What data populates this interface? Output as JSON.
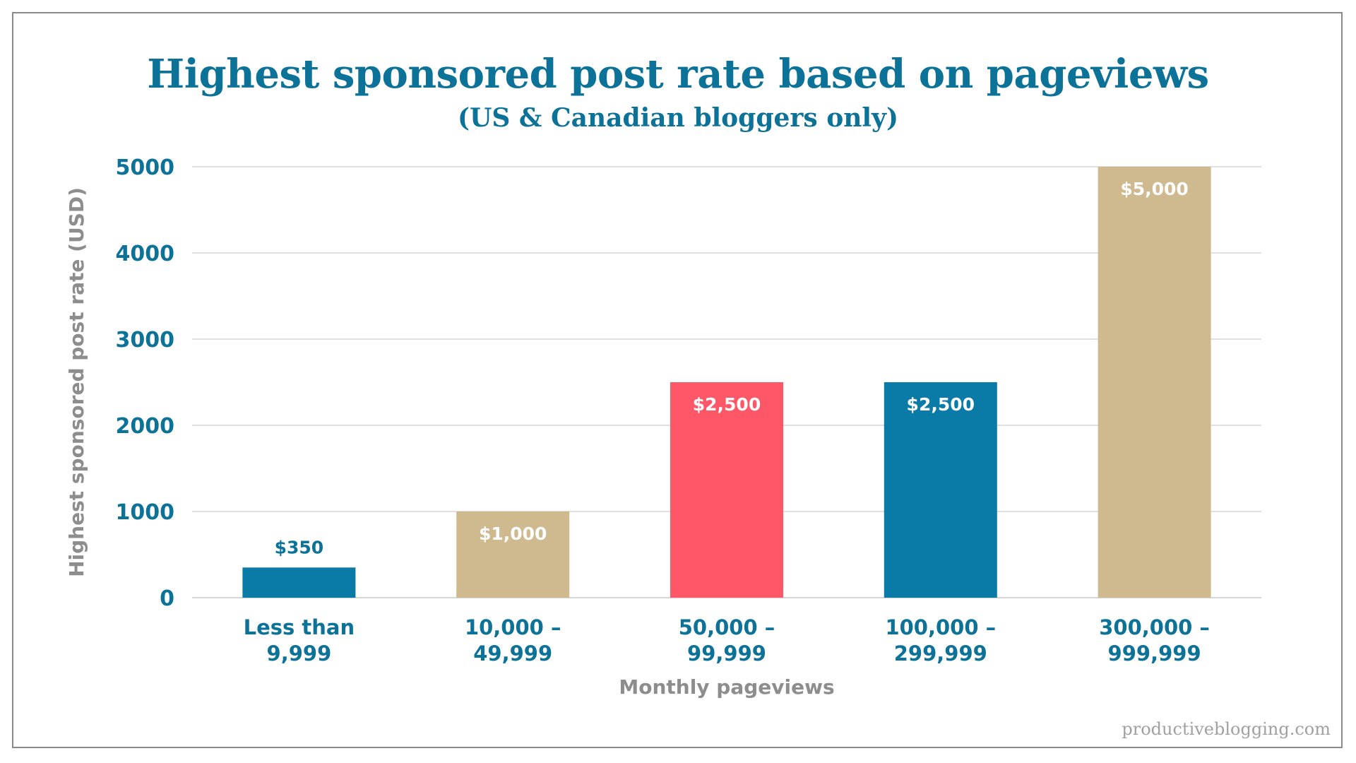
{
  "watermark": "productiveblogging.com",
  "chart_data": {
    "type": "bar",
    "title": "Highest sponsored post rate based on pageviews",
    "subtitle": "(US & Canadian bloggers only)",
    "xlabel": "Monthly pageviews",
    "ylabel": "Highest sponsored post rate (USD)",
    "ylim": [
      0,
      5000
    ],
    "yticks": [
      0,
      1000,
      2000,
      3000,
      4000,
      5000
    ],
    "grid": true,
    "categories": [
      [
        "Less than",
        "9,999"
      ],
      [
        "10,000 –",
        "49,999"
      ],
      [
        "50,000 –",
        "99,999"
      ],
      [
        "100,000 –",
        "299,999"
      ],
      [
        "300,000 –",
        "999,999"
      ]
    ],
    "values": [
      350,
      1000,
      2500,
      2500,
      5000
    ],
    "data_labels": [
      "$350",
      "$1,000",
      "$2,500",
      "$2,500",
      "$5,000"
    ],
    "colors": [
      "#0a7aa6",
      "#cfba8f",
      "#fd5768",
      "#0a7aa6",
      "#cfba8f"
    ],
    "text_color": "#0d7298",
    "inside_label_color": "#ffffff",
    "grid_color": "#d6d6d6"
  }
}
